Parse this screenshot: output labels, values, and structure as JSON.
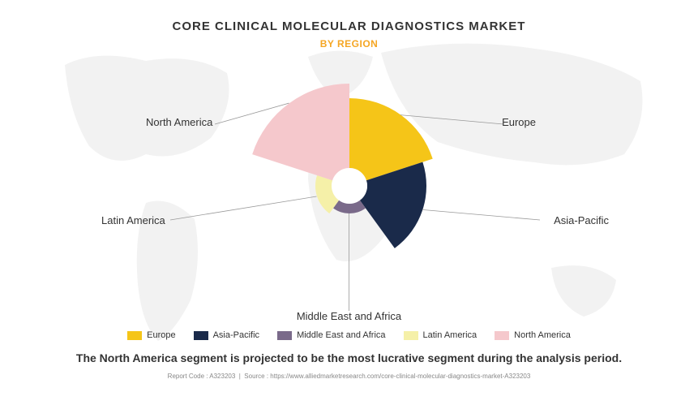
{
  "title": "CORE CLINICAL MOLECULAR DIAGNOSTICS MARKET",
  "subtitle": "BY REGION",
  "chart": {
    "type": "polar-area",
    "background_color": "#ffffff",
    "map_color": "#cccccc",
    "map_opacity": 0.08,
    "inner_radius": 22,
    "slices": [
      {
        "label": "Europe",
        "start_deg": 0,
        "end_deg": 72,
        "radius": 108,
        "color": "#f5c518"
      },
      {
        "label": "Asia-Pacific",
        "start_deg": 72,
        "end_deg": 144,
        "radius": 95,
        "color": "#1a2a4a"
      },
      {
        "label": "Middle East and Africa",
        "start_deg": 144,
        "end_deg": 216,
        "radius": 34,
        "color": "#7a6a8a"
      },
      {
        "label": "Latin America",
        "start_deg": 216,
        "end_deg": 288,
        "radius": 42,
        "color": "#f5f0a8"
      },
      {
        "label": "North America",
        "start_deg": 288,
        "end_deg": 360,
        "radius": 126,
        "color": "#f5c8cc"
      }
    ],
    "label_fontsize": 13,
    "label_color": "#333333",
    "leader_color": "#999999"
  },
  "legend": {
    "items": [
      {
        "label": "Europe",
        "color": "#f5c518"
      },
      {
        "label": "Asia-Pacific",
        "color": "#1a2a4a"
      },
      {
        "label": "Middle East and Africa",
        "color": "#7a6a8a"
      },
      {
        "label": "Latin America",
        "color": "#f5f0a8"
      },
      {
        "label": "North America",
        "color": "#f5c8cc"
      }
    ],
    "fontsize": 11
  },
  "footer_text": "The North America segment is projected to be the most lucrative segment during the analysis period.",
  "source": {
    "report_code_label": "Report Code : A323203",
    "source_label": "Source : https://www.alliedmarketresearch.com/core-clinical-molecular-diagnostics-market-A323203"
  }
}
